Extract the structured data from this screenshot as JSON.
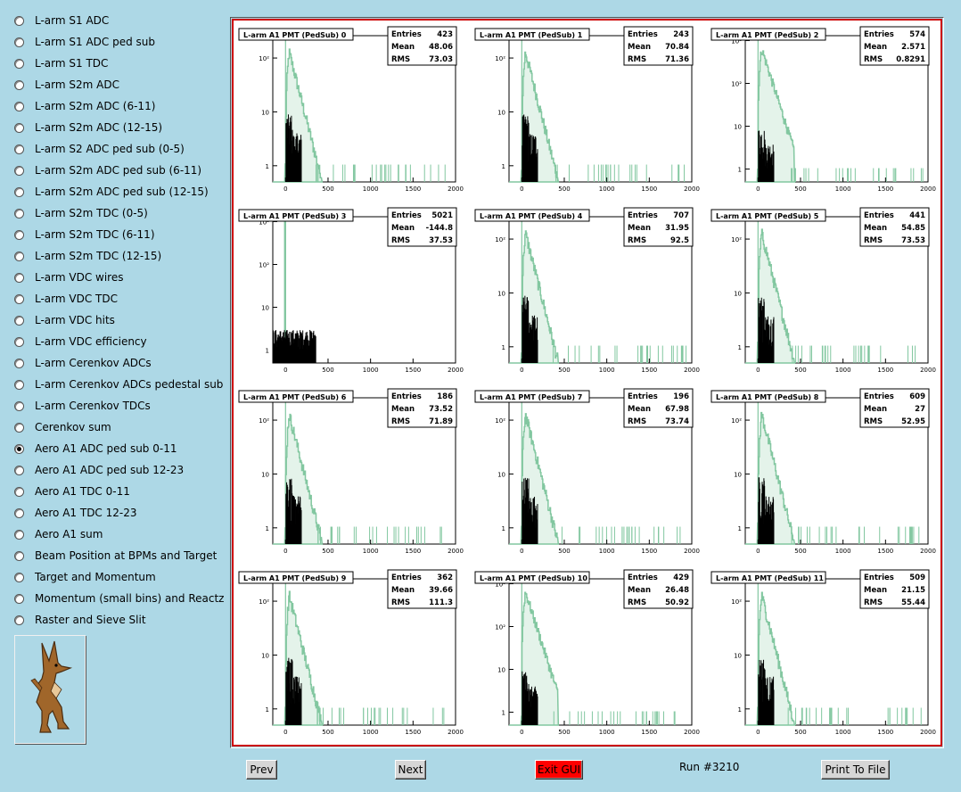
{
  "colors": {
    "background": "#add8e6",
    "canvas_border": "#cc0000",
    "hist_green": "#82c7a0",
    "hist_black": "#000000"
  },
  "sidebar": {
    "items": [
      {
        "label": "L-arm S1 ADC",
        "selected": false
      },
      {
        "label": "L-arm S1 ADC ped sub",
        "selected": false
      },
      {
        "label": "L-arm S1 TDC",
        "selected": false
      },
      {
        "label": "L-arm S2m ADC",
        "selected": false
      },
      {
        "label": "L-arm S2m ADC (6-11)",
        "selected": false
      },
      {
        "label": "L-arm S2m ADC (12-15)",
        "selected": false
      },
      {
        "label": "L-arm S2 ADC ped sub (0-5)",
        "selected": false
      },
      {
        "label": "L-arm S2m ADC ped sub (6-11)",
        "selected": false
      },
      {
        "label": "L-arm S2m ADC ped sub (12-15)",
        "selected": false
      },
      {
        "label": "L-arm S2m TDC (0-5)",
        "selected": false
      },
      {
        "label": "L-arm S2m TDC (6-11)",
        "selected": false
      },
      {
        "label": "L-arm S2m TDC (12-15)",
        "selected": false
      },
      {
        "label": "L-arm VDC wires",
        "selected": false
      },
      {
        "label": "L-arm VDC TDC",
        "selected": false
      },
      {
        "label": "L-arm VDC hits",
        "selected": false
      },
      {
        "label": "L-arm VDC efficiency",
        "selected": false
      },
      {
        "label": "L-arm Cerenkov ADCs",
        "selected": false
      },
      {
        "label": "L-arm Cerenkov ADCs pedestal sub",
        "selected": false
      },
      {
        "label": "L-arm Cerenkov TDCs",
        "selected": false
      },
      {
        "label": "Cerenkov sum",
        "selected": false
      },
      {
        "label": "Aero A1 ADC ped sub 0-11",
        "selected": true
      },
      {
        "label": "Aero A1 ADC ped sub 12-23",
        "selected": false
      },
      {
        "label": "Aero A1 TDC 0-11",
        "selected": false
      },
      {
        "label": "Aero A1 TDC 12-23",
        "selected": false
      },
      {
        "label": "Aero A1 sum",
        "selected": false
      },
      {
        "label": "Beam Position at BPMs and Target",
        "selected": false
      },
      {
        "label": "Target and Momentum",
        "selected": false
      },
      {
        "label": "Momentum (small bins) and Reactz",
        "selected": false
      },
      {
        "label": "Raster and Sieve Slit",
        "selected": false
      }
    ],
    "mascot_icon": "coyote-icon"
  },
  "footer": {
    "prev": "Prev",
    "next": "Next",
    "exit": "Exit GUI",
    "run": "Run #3210",
    "print": "Print To File"
  },
  "stat_labels": {
    "entries": "Entries",
    "mean": "Mean",
    "rms": "RMS"
  },
  "chart_data": [
    {
      "type": "bar",
      "title": "L-arm A1 PMT (PedSub) 0",
      "entries": "423",
      "mean": "48.06",
      "rms": "73.03",
      "xlim": [
        -150,
        2000
      ],
      "yscale": "log",
      "xticks": [
        "0",
        "500",
        "1000",
        "1500",
        "2000"
      ],
      "yticks": [
        "1",
        "10",
        "10²"
      ]
    },
    {
      "type": "bar",
      "title": "L-arm A1 PMT (PedSub) 1",
      "entries": "243",
      "mean": "70.84",
      "rms": "71.36",
      "xlim": [
        -150,
        2000
      ],
      "yscale": "log",
      "xticks": [
        "0",
        "500",
        "1000",
        "1500",
        "2000"
      ],
      "yticks": [
        "1",
        "10",
        "10²"
      ]
    },
    {
      "type": "bar",
      "title": "L-arm A1 PMT (PedSub) 2",
      "entries": "574",
      "mean": "2.571",
      "rms": "0.8291",
      "xlim": [
        -150,
        2000
      ],
      "yscale": "log",
      "xticks": [
        "0",
        "500",
        "1000",
        "1500",
        "2000"
      ],
      "yticks": [
        "1",
        "10",
        "10²",
        "10³"
      ]
    },
    {
      "type": "bar",
      "title": "L-arm A1 PMT (PedSub) 3",
      "entries": "5021",
      "mean": "-144.8",
      "rms": "37.53",
      "xlim": [
        -150,
        2000
      ],
      "yscale": "log",
      "xticks": [
        "0",
        "500",
        "1000",
        "1500",
        "2000"
      ],
      "yticks": [
        "1",
        "10",
        "10²",
        "10³"
      ]
    },
    {
      "type": "bar",
      "title": "L-arm A1 PMT (PedSub) 4",
      "entries": "707",
      "mean": "31.95",
      "rms": "92.5",
      "xlim": [
        -150,
        2000
      ],
      "yscale": "log",
      "xticks": [
        "0",
        "500",
        "1000",
        "1500",
        "2000"
      ],
      "yticks": [
        "1",
        "10",
        "10²"
      ]
    },
    {
      "type": "bar",
      "title": "L-arm A1 PMT (PedSub) 5",
      "entries": "441",
      "mean": "54.85",
      "rms": "73.53",
      "xlim": [
        -150,
        2000
      ],
      "yscale": "log",
      "xticks": [
        "0",
        "500",
        "1000",
        "1500",
        "2000"
      ],
      "yticks": [
        "1",
        "10",
        "10²"
      ]
    },
    {
      "type": "bar",
      "title": "L-arm A1 PMT (PedSub) 6",
      "entries": "186",
      "mean": "73.52",
      "rms": "71.89",
      "xlim": [
        -150,
        2000
      ],
      "yscale": "log",
      "xticks": [
        "0",
        "500",
        "1000",
        "1500",
        "2000"
      ],
      "yticks": [
        "1",
        "10",
        "10²"
      ]
    },
    {
      "type": "bar",
      "title": "L-arm A1 PMT (PedSub) 7",
      "entries": "196",
      "mean": "67.98",
      "rms": "73.74",
      "xlim": [
        -150,
        2000
      ],
      "yscale": "log",
      "xticks": [
        "0",
        "500",
        "1000",
        "1500",
        "2000"
      ],
      "yticks": [
        "1",
        "10",
        "10²"
      ]
    },
    {
      "type": "bar",
      "title": "L-arm A1 PMT (PedSub) 8",
      "entries": "609",
      "mean": "27",
      "rms": "52.95",
      "xlim": [
        -150,
        2000
      ],
      "yscale": "log",
      "xticks": [
        "0",
        "500",
        "1000",
        "1500",
        "2000"
      ],
      "yticks": [
        "1",
        "10",
        "10²"
      ]
    },
    {
      "type": "bar",
      "title": "L-arm A1 PMT (PedSub) 9",
      "entries": "362",
      "mean": "39.66",
      "rms": "111.3",
      "xlim": [
        -150,
        2000
      ],
      "yscale": "log",
      "xticks": [
        "0",
        "500",
        "1000",
        "1500",
        "2000"
      ],
      "yticks": [
        "1",
        "10",
        "10²"
      ]
    },
    {
      "type": "bar",
      "title": "L-arm A1 PMT (PedSub) 10",
      "entries": "429",
      "mean": "26.48",
      "rms": "50.92",
      "xlim": [
        -150,
        2000
      ],
      "yscale": "log",
      "xticks": [
        "0",
        "500",
        "1000",
        "1500",
        "2000"
      ],
      "yticks": [
        "1",
        "10",
        "10²",
        "10³"
      ]
    },
    {
      "type": "bar",
      "title": "L-arm A1 PMT (PedSub) 11",
      "entries": "509",
      "mean": "21.15",
      "rms": "55.44",
      "xlim": [
        -150,
        2000
      ],
      "yscale": "log",
      "xticks": [
        "0",
        "500",
        "1000",
        "1500",
        "2000"
      ],
      "yticks": [
        "1",
        "10",
        "10²"
      ]
    }
  ]
}
